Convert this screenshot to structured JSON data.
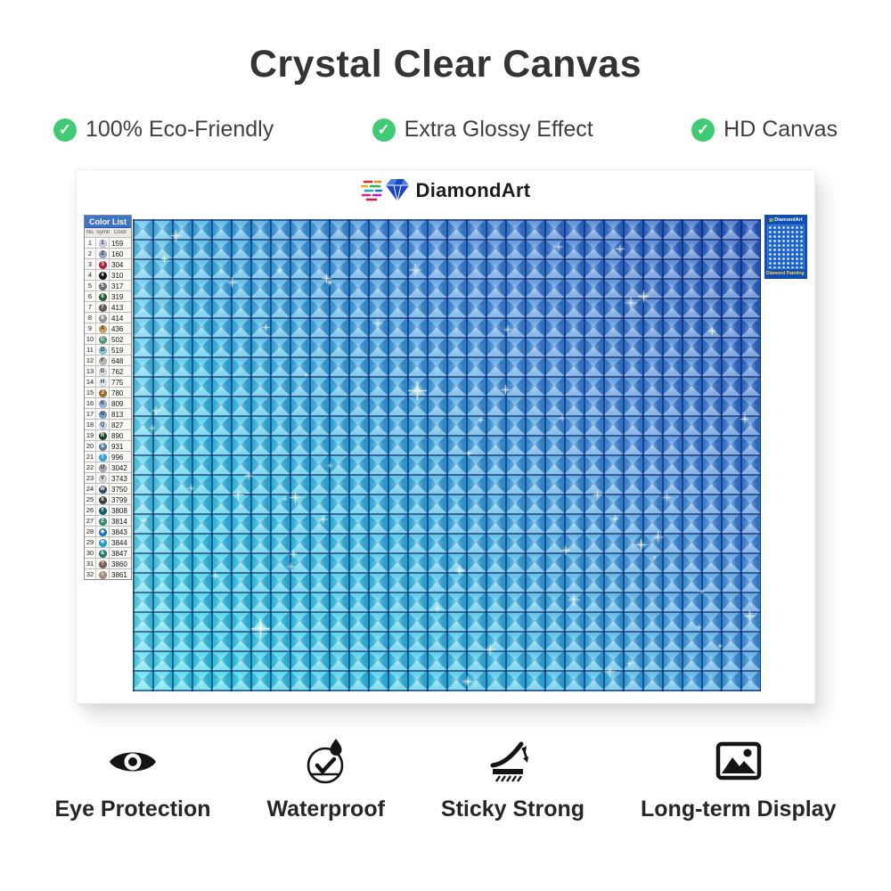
{
  "accent_green": "#3ecb74",
  "title": "Crystal Clear Canvas",
  "features": [
    {
      "icon": "check-icon",
      "label": "100% Eco-Friendly"
    },
    {
      "icon": "check-icon",
      "label": "Extra Glossy Effect"
    },
    {
      "icon": "check-icon",
      "label": "HD Canvas"
    }
  ],
  "canvas": {
    "brand": "DiamondArt",
    "color_list": {
      "title": "Color List",
      "columns": [
        "No.",
        "Symbol",
        "Color"
      ],
      "rows": [
        {
          "no": 1,
          "symbol": "1",
          "code": "159",
          "swatch": "#c9cde4"
        },
        {
          "no": 2,
          "symbol": "2",
          "code": "160",
          "swatch": "#99a3c8"
        },
        {
          "no": 3,
          "symbol": "3",
          "code": "304",
          "swatch": "#b61c32"
        },
        {
          "no": 4,
          "symbol": "4",
          "code": "310",
          "swatch": "#111111"
        },
        {
          "no": 5,
          "symbol": "5",
          "code": "317",
          "swatch": "#6e6e74"
        },
        {
          "no": 6,
          "symbol": "6",
          "code": "319",
          "swatch": "#205e38"
        },
        {
          "no": 7,
          "symbol": "7",
          "code": "413",
          "swatch": "#5c5c54"
        },
        {
          "no": 8,
          "symbol": "8",
          "code": "414",
          "swatch": "#949498"
        },
        {
          "no": 9,
          "symbol": "A",
          "code": "436",
          "swatch": "#d2a05a"
        },
        {
          "no": 10,
          "symbol": "C",
          "code": "502",
          "swatch": "#4f9a7a"
        },
        {
          "no": 11,
          "symbol": "D",
          "code": "519",
          "swatch": "#86c5e0"
        },
        {
          "no": 12,
          "symbol": "F",
          "code": "648",
          "swatch": "#b9bcae"
        },
        {
          "no": 13,
          "symbol": "G",
          "code": "762",
          "swatch": "#dedede"
        },
        {
          "no": 14,
          "symbol": "H",
          "code": "775",
          "swatch": "#d9e8f5"
        },
        {
          "no": 15,
          "symbol": "J",
          "code": "780",
          "swatch": "#9c6a26"
        },
        {
          "no": 16,
          "symbol": "K",
          "code": "809",
          "swatch": "#94b6e0"
        },
        {
          "no": 17,
          "symbol": "N",
          "code": "813",
          "swatch": "#6ea2d4"
        },
        {
          "no": 18,
          "symbol": "Q",
          "code": "827",
          "swatch": "#c0dcf0"
        },
        {
          "no": 19,
          "symbol": "R",
          "code": "890",
          "swatch": "#1b402a"
        },
        {
          "no": 20,
          "symbol": "S",
          "code": "931",
          "swatch": "#5c7c9e"
        },
        {
          "no": 21,
          "symbol": "T",
          "code": "996",
          "swatch": "#2fa8dc"
        },
        {
          "no": 22,
          "symbol": "U",
          "code": "3042",
          "swatch": "#b2a3b4"
        },
        {
          "no": 23,
          "symbol": "V",
          "code": "3743",
          "swatch": "#d7cfda"
        },
        {
          "no": 24,
          "symbol": "W",
          "code": "3750",
          "swatch": "#2c4c68"
        },
        {
          "no": 25,
          "symbol": "X",
          "code": "3799",
          "swatch": "#3c3c42"
        },
        {
          "no": 26,
          "symbol": "Y",
          "code": "3808",
          "swatch": "#11616c"
        },
        {
          "no": 27,
          "symbol": "Z",
          "code": "3814",
          "swatch": "#2e8e74"
        },
        {
          "no": 28,
          "symbol": "◆",
          "code": "3843",
          "swatch": "#1474cc"
        },
        {
          "no": 29,
          "symbol": "✳",
          "code": "3844",
          "swatch": "#189ed6"
        },
        {
          "no": 30,
          "symbol": "&",
          "code": "3847",
          "swatch": "#1d7a68"
        },
        {
          "no": 31,
          "symbol": "?",
          "code": "3860",
          "swatch": "#7d6056"
        },
        {
          "no": 32,
          "symbol": "=",
          "code": "3861",
          "swatch": "#a68d7c"
        }
      ]
    },
    "grid": {
      "columns": 32,
      "rows": 24,
      "color_bottom_left": "#2fd6e6",
      "color_top_right": "#2457ba",
      "grout": "rgba(4,22,88,0.55)"
    },
    "thumbnail": {
      "brand": "DiamondArt",
      "caption": "Diamond Painting Set"
    }
  },
  "bottom_features": [
    {
      "icon": "eye-icon",
      "label": "Eye Protection"
    },
    {
      "icon": "waterproof-icon",
      "label": "Waterproof"
    },
    {
      "icon": "sticky-strong-icon",
      "label": "Sticky Strong"
    },
    {
      "icon": "picture-icon",
      "label": "Long-term Display"
    }
  ]
}
